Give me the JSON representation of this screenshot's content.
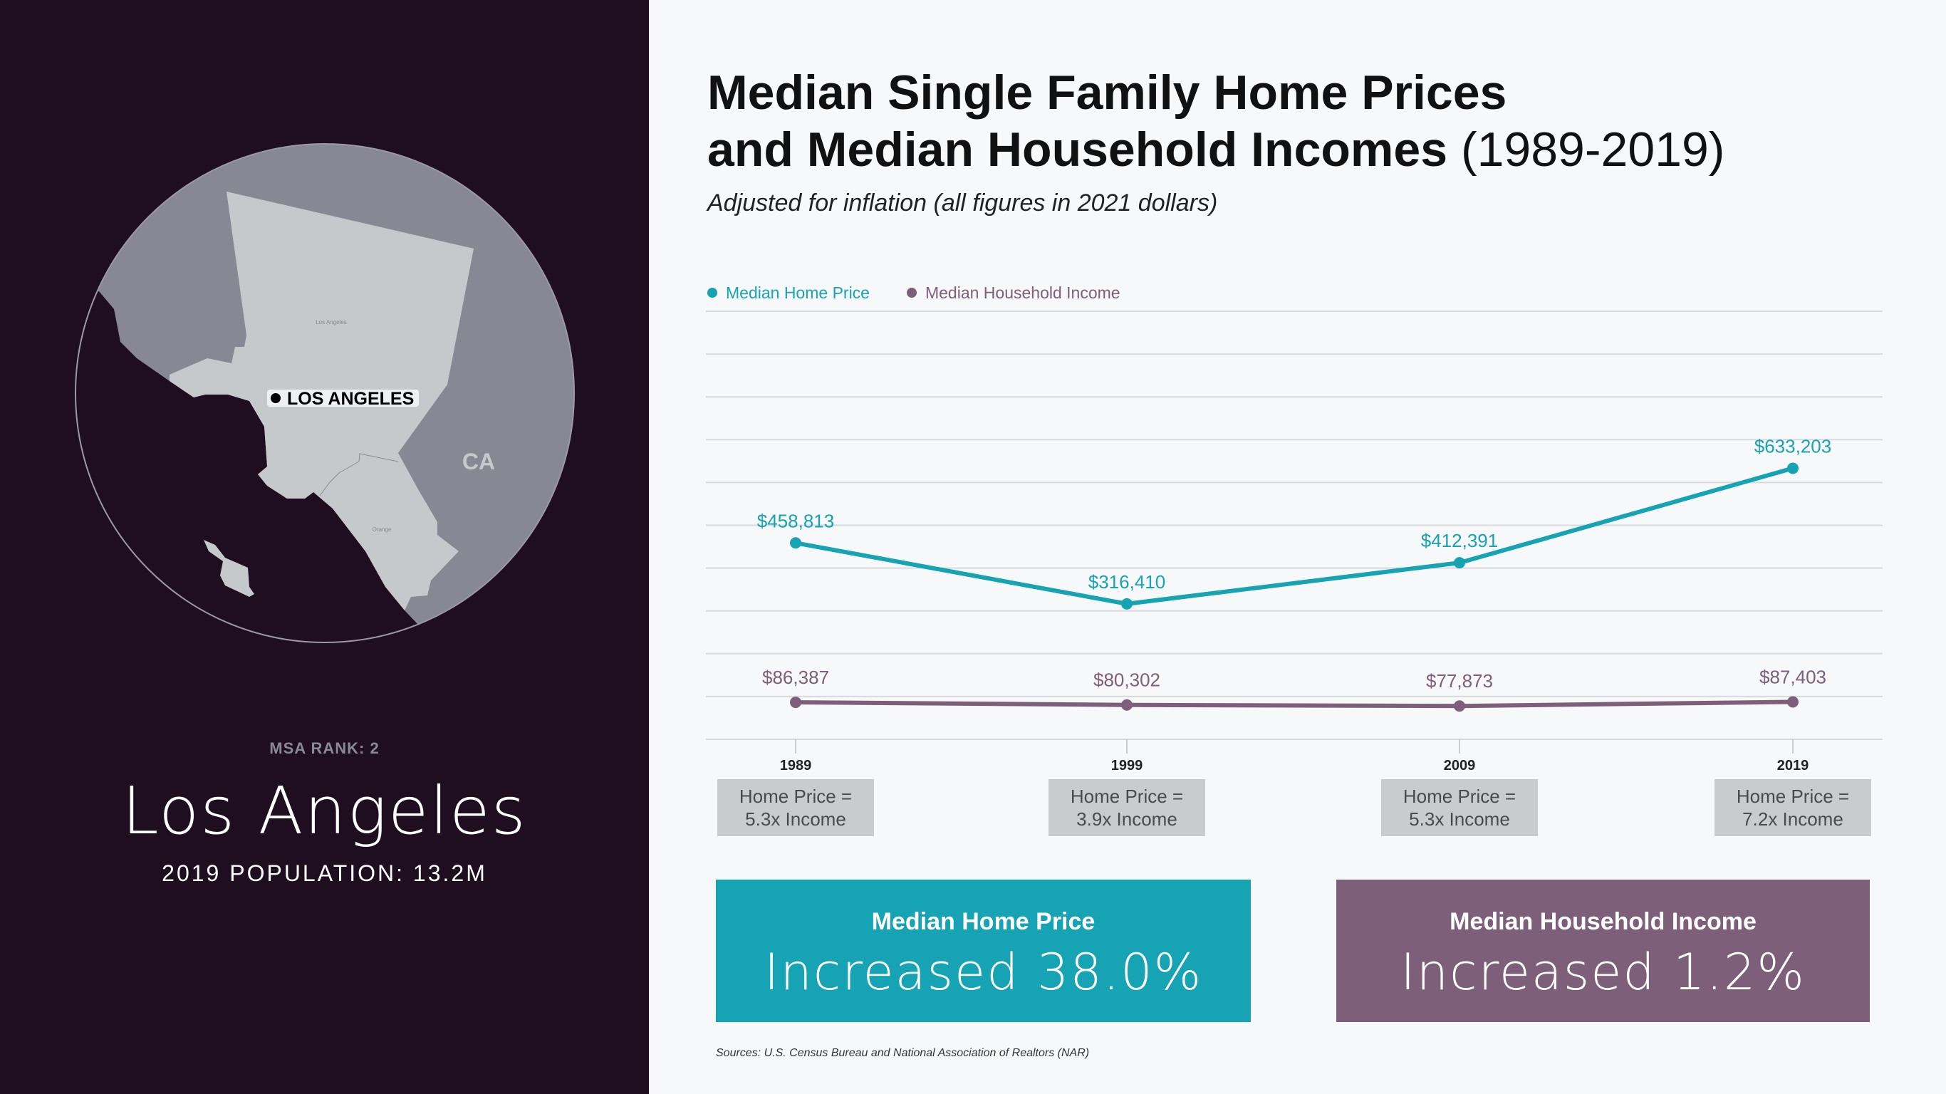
{
  "left_panel": {
    "map_label": "LOS ANGELES",
    "state_label": "CA",
    "county_labels": [
      "Los Angeles",
      "Orange"
    ],
    "msa_rank": "MSA RANK: 2",
    "city": "Los Angeles",
    "population": "2019 POPULATION: 13.2M"
  },
  "header": {
    "title_line1": "Median Single Family Home Prices",
    "title_line2": "and Median Household Incomes",
    "title_years": "(1989-2019)",
    "subtitle": "Adjusted for inflation (all figures in 2021 dollars)"
  },
  "colors": {
    "home": "#16a3b3",
    "income": "#7d5f7a",
    "background_left": "#1e0e20"
  },
  "chart_data": {
    "type": "line",
    "x": [
      "1989",
      "1999",
      "2009",
      "2019"
    ],
    "ylim": [
      0,
      1000000
    ],
    "grid": true,
    "legend_position": "top-left",
    "series": [
      {
        "name": "Median Home Price",
        "values": [
          458813,
          316410,
          412391,
          633203
        ],
        "labels": [
          "$458,813",
          "$316,410",
          "$412,391",
          "$633,203"
        ]
      },
      {
        "name": "Median Household Income",
        "values": [
          86387,
          80302,
          77873,
          87403
        ],
        "labels": [
          "$86,387",
          "$80,302",
          "$77,873",
          "$87,403"
        ]
      }
    ]
  },
  "ratios": [
    {
      "line1": "Home Price =",
      "line2": "5.3x Income"
    },
    {
      "line1": "Home Price =",
      "line2": "3.9x Income"
    },
    {
      "line1": "Home Price =",
      "line2": "5.3x Income"
    },
    {
      "line1": "Home Price =",
      "line2": "7.2x Income"
    }
  ],
  "summary": {
    "home": {
      "title": "Median Home Price",
      "value": "Increased 38.0%"
    },
    "income": {
      "title": "Median Household Income",
      "value": "Increased 1.2%"
    }
  },
  "sources": "Sources: U.S. Census Bureau and National Association of Realtors (NAR)"
}
